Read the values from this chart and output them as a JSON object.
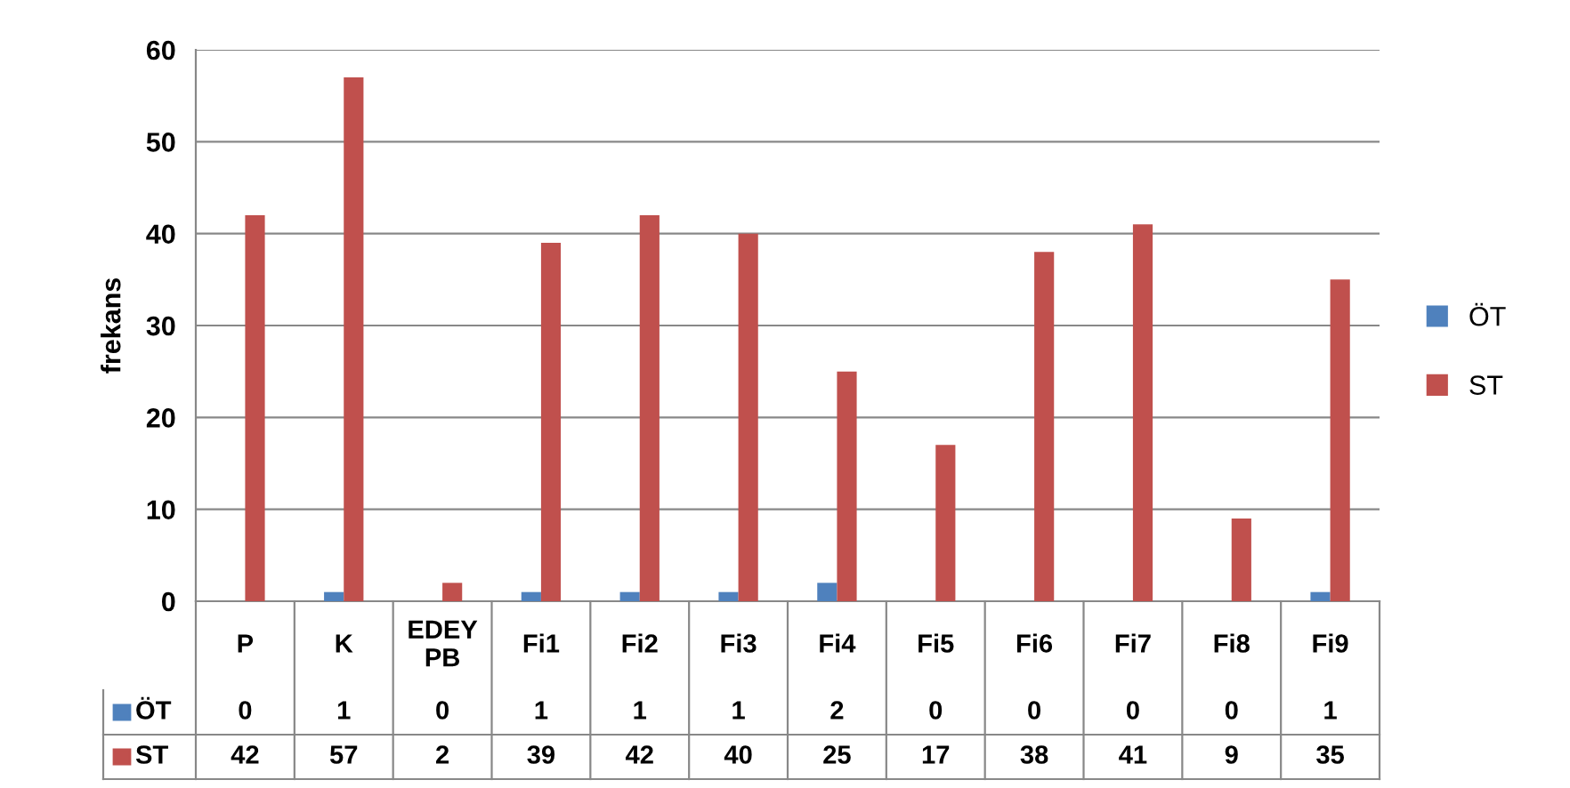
{
  "chart_data": {
    "type": "bar",
    "ylabel": "frekans",
    "categories": [
      "P",
      "K",
      "EDEY\nPB",
      "Fi1",
      "Fi2",
      "Fi3",
      "Fi4",
      "Fi5",
      "Fi6",
      "Fi7",
      "Fi8",
      "Fi9"
    ],
    "series": [
      {
        "name": "ÖT",
        "color": "#4f81bd",
        "values": [
          0,
          1,
          0,
          1,
          1,
          1,
          2,
          0,
          0,
          0,
          0,
          1
        ]
      },
      {
        "name": "ST",
        "color": "#c0504d",
        "values": [
          42,
          57,
          2,
          39,
          42,
          40,
          25,
          17,
          38,
          41,
          9,
          35
        ]
      }
    ],
    "ylim": [
      0,
      60
    ],
    "yticks": [
      0,
      10,
      20,
      30,
      40,
      50,
      60
    ],
    "grid": "y",
    "legend": "right",
    "data_labels": true
  }
}
